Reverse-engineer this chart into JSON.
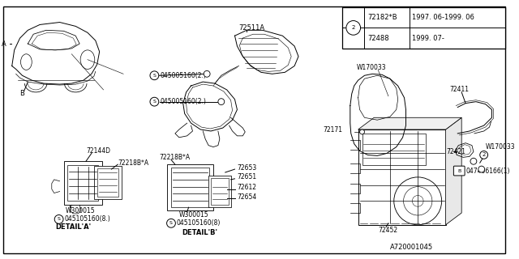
{
  "bg_color": "#ffffff",
  "diagram_id": "A720001045",
  "table_rows": [
    [
      "72182*B",
      "1997. 06-1999. 06"
    ],
    [
      "72488",
      "1999. 07-"
    ]
  ]
}
